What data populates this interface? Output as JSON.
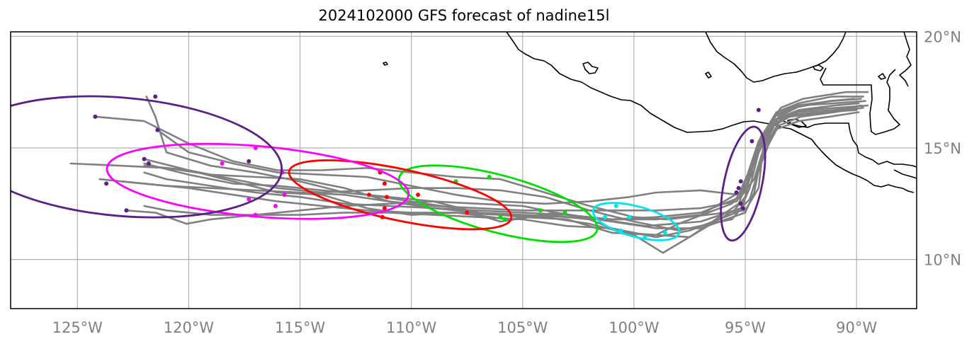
{
  "title": "2024102000 GFS forecast of nadine15l",
  "map": {
    "lon_range": [
      -128,
      -87.3
    ],
    "lat_range": [
      7.8,
      20.2
    ],
    "x_ticks": [
      {
        "lon": -125,
        "label": "125°W"
      },
      {
        "lon": -120,
        "label": "120°W"
      },
      {
        "lon": -115,
        "label": "115°W"
      },
      {
        "lon": -110,
        "label": "110°W"
      },
      {
        "lon": -105,
        "label": "105°W"
      },
      {
        "lon": -100,
        "label": "100°W"
      },
      {
        "lon": -95,
        "label": "95°W"
      },
      {
        "lon": -90,
        "label": "90°W"
      }
    ],
    "y_ticks": [
      {
        "lat": 10,
        "label": "10°N"
      },
      {
        "lat": 15,
        "label": "15°N"
      },
      {
        "lat": 20,
        "label": "20°N"
      }
    ],
    "colors": {
      "track": "#808080",
      "grid": "#b0b0b0",
      "coast": "#000000",
      "tick_label": "#808080"
    }
  },
  "ensemble_tracks": [
    [
      [
        -89.7,
        16.8
      ],
      [
        -91,
        16.6
      ],
      [
        -92.5,
        16.4
      ],
      [
        -93.5,
        16.0
      ],
      [
        -94.3,
        14.5
      ],
      [
        -94.6,
        13.0
      ],
      [
        -95,
        12.1
      ],
      [
        -97,
        11.4
      ],
      [
        -99,
        11.4
      ],
      [
        -101,
        11.7
      ],
      [
        -103,
        12.0
      ],
      [
        -105,
        12.1
      ],
      [
        -107,
        12.2
      ],
      [
        -109,
        12.3
      ],
      [
        -111,
        12.4
      ],
      [
        -113,
        12.5
      ],
      [
        -115,
        12.8
      ],
      [
        -117,
        13.0
      ],
      [
        -119,
        13.3
      ],
      [
        -121,
        13.6
      ],
      [
        -122,
        13.9
      ]
    ],
    [
      [
        -89.9,
        17.0
      ],
      [
        -91,
        16.9
      ],
      [
        -92.6,
        16.7
      ],
      [
        -93.6,
        16.3
      ],
      [
        -94.4,
        14.8
      ],
      [
        -94.8,
        13.2
      ],
      [
        -95.2,
        12.3
      ],
      [
        -97,
        11.7
      ],
      [
        -99.5,
        11.5
      ],
      [
        -101.5,
        11.8
      ],
      [
        -103.5,
        12.1
      ],
      [
        -105.6,
        11.8
      ],
      [
        -108,
        12.1
      ],
      [
        -110,
        12.0
      ],
      [
        -112,
        12.3
      ],
      [
        -114,
        12.9
      ],
      [
        -116,
        13.0
      ],
      [
        -118,
        13.5
      ],
      [
        -120,
        14.0
      ],
      [
        -122,
        14.5
      ]
    ],
    [
      [
        -90.1,
        17.2
      ],
      [
        -91.2,
        17.1
      ],
      [
        -92.8,
        16.8
      ],
      [
        -93.7,
        16.4
      ],
      [
        -94.5,
        15.0
      ],
      [
        -94.9,
        13.5
      ],
      [
        -95.3,
        12.5
      ],
      [
        -97.5,
        11.0
      ],
      [
        -100.5,
        11.2
      ],
      [
        -102,
        11.8
      ],
      [
        -104,
        12.0
      ],
      [
        -106,
        11.7
      ],
      [
        -108,
        12.3
      ],
      [
        -110,
        12.6
      ],
      [
        -112,
        12.9
      ],
      [
        -114,
        13.1
      ],
      [
        -116,
        13.3
      ],
      [
        -118,
        13.4
      ],
      [
        -120,
        13.8
      ],
      [
        -122,
        14.3
      ]
    ],
    [
      [
        -89.8,
        16.9
      ],
      [
        -91,
        16.7
      ],
      [
        -92.7,
        16.6
      ],
      [
        -93.8,
        16.2
      ],
      [
        -94.6,
        14.6
      ],
      [
        -95,
        12.8
      ],
      [
        -95.5,
        12.2
      ],
      [
        -98.7,
        10.3
      ],
      [
        -100,
        11.1
      ],
      [
        -102,
        11.6
      ],
      [
        -104,
        11.9
      ],
      [
        -106,
        12.0
      ],
      [
        -108,
        12.1
      ],
      [
        -110,
        12.1
      ],
      [
        -112,
        12.2
      ],
      [
        -114,
        12.4
      ],
      [
        -116,
        12.6
      ],
      [
        -118,
        12.9
      ],
      [
        -120,
        13.2
      ],
      [
        -123,
        13.5
      ]
    ],
    [
      [
        -90,
        16.8
      ],
      [
        -91.3,
        16.6
      ],
      [
        -92.9,
        16.5
      ],
      [
        -93.9,
        16.0
      ],
      [
        -94.7,
        14.2
      ],
      [
        -95.2,
        13.0
      ],
      [
        -95.6,
        12.5
      ],
      [
        -98,
        11.6
      ],
      [
        -99,
        11.1
      ],
      [
        -101,
        11.2
      ],
      [
        -103,
        11.8
      ],
      [
        -105,
        11.9
      ],
      [
        -107,
        12.1
      ],
      [
        -109,
        12.6
      ],
      [
        -111,
        12.8
      ],
      [
        -113,
        13.0
      ],
      [
        -115,
        13.5
      ],
      [
        -117,
        13.9
      ],
      [
        -119,
        14.2
      ],
      [
        -121,
        14.8
      ],
      [
        -121.5,
        16.4
      ],
      [
        -121.9,
        17.3
      ]
    ],
    [
      [
        -89.6,
        17.1
      ],
      [
        -91,
        17.0
      ],
      [
        -92.5,
        16.9
      ],
      [
        -93.5,
        16.4
      ],
      [
        -94.2,
        15.0
      ],
      [
        -94.4,
        13.2
      ],
      [
        -95,
        12.2
      ],
      [
        -98.5,
        11.8
      ],
      [
        -100,
        11.9
      ],
      [
        -102,
        12.4
      ],
      [
        -104,
        13.0
      ],
      [
        -106,
        13.6
      ],
      [
        -108,
        13.7
      ],
      [
        -110,
        13.9
      ],
      [
        -112,
        14.1
      ],
      [
        -114,
        14.0
      ],
      [
        -116,
        14.0
      ],
      [
        -118,
        14.4
      ],
      [
        -120,
        15.2
      ],
      [
        -122,
        16.2
      ],
      [
        -124.2,
        16.4
      ]
    ],
    [
      [
        -89.7,
        17.3
      ],
      [
        -91.1,
        17.3
      ],
      [
        -92.6,
        17.0
      ],
      [
        -93.6,
        16.6
      ],
      [
        -94.4,
        15.3
      ],
      [
        -94.9,
        13.8
      ],
      [
        -95.3,
        12.9
      ],
      [
        -97,
        13.1
      ],
      [
        -99,
        13.0
      ],
      [
        -100.2,
        12.8
      ],
      [
        -102,
        12.6
      ],
      [
        -104,
        12.5
      ],
      [
        -106,
        12.6
      ],
      [
        -108,
        12.9
      ],
      [
        -110,
        13.3
      ],
      [
        -112,
        13.7
      ],
      [
        -114,
        13.8
      ],
      [
        -116,
        13.9
      ],
      [
        -118,
        14.3
      ],
      [
        -120,
        14.8
      ],
      [
        -121.4,
        15.8
      ]
    ],
    [
      [
        -89.5,
        17.5
      ],
      [
        -90.5,
        17.5
      ],
      [
        -92.4,
        17.2
      ],
      [
        -93.4,
        16.8
      ],
      [
        -94.3,
        15.5
      ],
      [
        -94.6,
        14.0
      ],
      [
        -95.1,
        13.1
      ],
      [
        -97,
        12.0
      ],
      [
        -99,
        11.8
      ],
      [
        -101,
        11.8
      ],
      [
        -103,
        12.0
      ],
      [
        -105,
        12.4
      ],
      [
        -107,
        12.5
      ],
      [
        -109,
        12.6
      ],
      [
        -111,
        12.5
      ],
      [
        -113,
        12.4
      ],
      [
        -115,
        12.2
      ],
      [
        -117,
        12.0
      ],
      [
        -119,
        11.8
      ],
      [
        -120.1,
        11.6
      ],
      [
        -121.5,
        12.1
      ],
      [
        -122.8,
        12.2
      ]
    ],
    [
      [
        -89.9,
        16.6
      ],
      [
        -91.2,
        16.4
      ],
      [
        -92.6,
        16.2
      ],
      [
        -93.7,
        15.8
      ],
      [
        -94.4,
        14.0
      ],
      [
        -94.8,
        12.7
      ],
      [
        -95.4,
        12.1
      ],
      [
        -97.5,
        11.3
      ],
      [
        -99,
        11.0
      ],
      [
        -101,
        11.4
      ],
      [
        -103,
        11.5
      ],
      [
        -105,
        11.8
      ],
      [
        -107,
        11.9
      ],
      [
        -109,
        12.0
      ],
      [
        -111,
        12.1
      ],
      [
        -113,
        12.1
      ],
      [
        -115,
        12.0
      ],
      [
        -117,
        12.0
      ],
      [
        -119,
        12.0
      ],
      [
        -121,
        12.2
      ],
      [
        -122,
        12.4
      ]
    ],
    [
      [
        -90,
        16.7
      ],
      [
        -91.4,
        16.6
      ],
      [
        -93,
        16.4
      ],
      [
        -93.9,
        15.9
      ],
      [
        -94.7,
        14.1
      ],
      [
        -95.1,
        12.4
      ],
      [
        -95.6,
        11.8
      ],
      [
        -98,
        11.3
      ],
      [
        -100,
        11.7
      ],
      [
        -102,
        12.2
      ],
      [
        -104,
        12.8
      ],
      [
        -106,
        13.1
      ],
      [
        -108,
        13.2
      ],
      [
        -110,
        13.2
      ],
      [
        -112,
        13.1
      ],
      [
        -114,
        13.0
      ],
      [
        -116,
        13.2
      ],
      [
        -118,
        13.6
      ],
      [
        -120,
        14.0
      ],
      [
        -122,
        14.2
      ]
    ],
    [
      [
        -89.8,
        17.2
      ],
      [
        -91.1,
        17.1
      ],
      [
        -92.7,
        16.9
      ],
      [
        -93.6,
        16.5
      ],
      [
        -94.5,
        14.7
      ],
      [
        -94.9,
        13.3
      ],
      [
        -95.4,
        12.6
      ],
      [
        -97,
        12.3
      ],
      [
        -99,
        12.2
      ],
      [
        -101,
        12.2
      ],
      [
        -103,
        12.2
      ],
      [
        -105,
        12.2
      ],
      [
        -107,
        12.3
      ],
      [
        -109,
        12.4
      ],
      [
        -111,
        12.6
      ],
      [
        -113,
        12.9
      ],
      [
        -115,
        13.0
      ],
      [
        -117,
        13.1
      ],
      [
        -119,
        13.2
      ],
      [
        -121,
        13.3
      ],
      [
        -123,
        13.5
      ],
      [
        -124,
        13.6
      ]
    ],
    [
      [
        -89.5,
        16.9
      ],
      [
        -90.8,
        16.8
      ],
      [
        -92.4,
        16.7
      ],
      [
        -93.4,
        16.3
      ],
      [
        -94.2,
        14.9
      ],
      [
        -94.6,
        13.6
      ],
      [
        -95.2,
        12.8
      ],
      [
        -97,
        12.1
      ],
      [
        -99,
        11.9
      ],
      [
        -101,
        11.8
      ],
      [
        -103,
        11.9
      ],
      [
        -105,
        12.0
      ],
      [
        -107,
        12.1
      ],
      [
        -109,
        12.3
      ],
      [
        -111,
        12.6
      ],
      [
        -113,
        13.2
      ],
      [
        -115,
        13.6
      ],
      [
        -117,
        13.7
      ],
      [
        -119,
        13.8
      ],
      [
        -121,
        14.1
      ],
      [
        -123,
        14.2
      ],
      [
        -125.3,
        14.3
      ]
    ]
  ],
  "markers": [
    {
      "color": "#5b1f8a",
      "points": [
        [
          -94.4,
          16.7
        ],
        [
          -94.7,
          15.3
        ],
        [
          -95.2,
          13.5
        ],
        [
          -95.3,
          13.2
        ],
        [
          -95.4,
          13.0
        ],
        [
          -95.2,
          12.5
        ],
        [
          -95.1,
          12.3
        ]
      ]
    },
    {
      "color": "#00e5ee",
      "points": [
        [
          -100.8,
          12.4
        ],
        [
          -100.2,
          11.9
        ],
        [
          -100.6,
          11.3
        ],
        [
          -99.5,
          11.0
        ],
        [
          -98.6,
          11.2
        ],
        [
          -101.3,
          11.9
        ]
      ]
    },
    {
      "color": "#00e000",
      "points": [
        [
          -106.5,
          13.7
        ],
        [
          -108.0,
          13.5
        ],
        [
          -105.8,
          11.8
        ],
        [
          -104.2,
          12.2
        ],
        [
          -103.1,
          12.1
        ],
        [
          -106.0,
          11.9
        ]
      ]
    },
    {
      "color": "#ff0000",
      "points": [
        [
          -111.4,
          13.9
        ],
        [
          -111.2,
          13.4
        ],
        [
          -111.1,
          12.8
        ],
        [
          -109.7,
          12.9
        ],
        [
          -111.2,
          12.3
        ],
        [
          -111.3,
          11.9
        ],
        [
          -107.5,
          12.1
        ],
        [
          -111.9,
          12.9
        ]
      ]
    },
    {
      "color": "#ff00ff",
      "points": [
        [
          -117.0,
          15.0
        ],
        [
          -115.8,
          13.9
        ],
        [
          -118.5,
          14.3
        ],
        [
          -117.3,
          12.7
        ],
        [
          -115.7,
          12.9
        ],
        [
          -116.1,
          12.4
        ],
        [
          -117.0,
          12.0
        ]
      ]
    },
    {
      "color": "#5b1f8a",
      "points": [
        [
          -121.5,
          17.3
        ],
        [
          -124.2,
          16.4
        ],
        [
          -121.4,
          15.8
        ],
        [
          -122.0,
          14.5
        ],
        [
          -121.8,
          14.3
        ],
        [
          -117.3,
          14.4
        ],
        [
          -123.7,
          13.4
        ],
        [
          -122.8,
          12.2
        ]
      ]
    }
  ],
  "ellipses": [
    {
      "color": "#5b1f8a",
      "cx": -95.1,
      "cy": 13.4,
      "rx": 0.85,
      "ry": 2.6,
      "rot": 12
    },
    {
      "color": "#00e5ee",
      "cx": -99.9,
      "cy": 11.7,
      "rx": 2.0,
      "ry": 0.68,
      "rot": 15
    },
    {
      "color": "#00e000",
      "cx": -106.1,
      "cy": 12.5,
      "rx": 4.6,
      "ry": 1.28,
      "rot": 15
    },
    {
      "color": "#ff0000",
      "cx": -110.5,
      "cy": 12.9,
      "rx": 5.1,
      "ry": 1.15,
      "rot": 12
    },
    {
      "color": "#ff00ff",
      "cx": -116.9,
      "cy": 13.5,
      "rx": 6.8,
      "ry": 1.58,
      "rot": 5
    },
    {
      "color": "#5b1f8a",
      "cx": -123.0,
      "cy": 14.6,
      "rx": 7.2,
      "ry": 2.65,
      "rot": 5
    }
  ]
}
